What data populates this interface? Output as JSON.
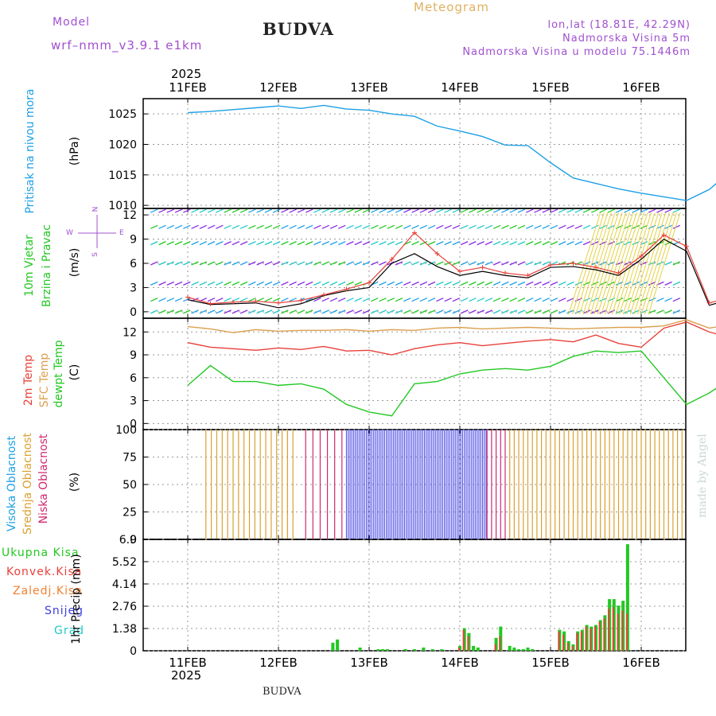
{
  "header": {
    "model_label": "Model",
    "model_name": "wrf–nmm_v3.9.1  e1km",
    "location": "BUDVA",
    "title": "Meteogram",
    "coords": "lon,lat (18.81E, 42.29N)",
    "elevation": "Nadmorska Visina 5m",
    "model_elevation": "Nadmorska Visina u modelu 75.1446m",
    "footer_location": "BUDVA",
    "watermark": "made by Angel"
  },
  "colors": {
    "pressure": "#1ea0e6",
    "wind_speed_gust": "#e8403a",
    "wind_speed": "#000000",
    "temp_2m": "#e8403a",
    "temp_sfc": "#dca050",
    "temp_dewpt": "#22c822",
    "cloud_high": "#5a5ae6",
    "cloud_mid": "#dca030",
    "cloud_low": "#d2286e",
    "precip_total": "#22c822",
    "precip_conv": "#e8403a",
    "precip_snow": "#4040e0",
    "precip_graupel": "#22c8c8",
    "precip_frozen": "#f08030"
  },
  "chart_data": [
    {
      "type": "line",
      "name": "pressure",
      "ylabel_lines": [
        "Pritisak na nivou mora",
        "(hPa)"
      ],
      "x_range": [
        0,
        6.0
      ],
      "ylim": [
        1009.5,
        1027.5
      ],
      "yticks": [
        1010,
        1015,
        1020,
        1025
      ],
      "grid": true,
      "x": [
        0,
        0.25,
        0.5,
        0.75,
        1.0,
        1.25,
        1.5,
        1.75,
        2.0,
        2.25,
        2.5,
        2.75,
        3.0,
        3.25,
        3.5,
        3.75,
        4.0,
        4.25,
        4.5,
        4.75,
        5.0,
        5.25,
        5.5,
        5.75,
        6.0
      ],
      "values": [
        1025.2,
        1025.4,
        1025.7,
        1026.0,
        1026.3,
        1025.9,
        1026.4,
        1025.8,
        1025.6,
        1025.0,
        1024.6,
        1023.0,
        1022.2,
        1021.3,
        1019.9,
        1019.8,
        1017.0,
        1014.5,
        1013.6,
        1012.7,
        1012.0,
        1011.4,
        1010.8,
        1012.6,
        1015.8
      ]
    },
    {
      "type": "line",
      "name": "wind",
      "ylabel_lines": [
        "10m Vjetar",
        "Brzina i Pravac",
        "(m/s)"
      ],
      "compass": [
        "N",
        "W",
        "E",
        "S"
      ],
      "x_range": [
        0,
        6.0
      ],
      "ylim": [
        -0.8,
        12.8
      ],
      "yticks": [
        0,
        3,
        6,
        9,
        12
      ],
      "grid": true,
      "series": [
        {
          "role": "gust",
          "x": [
            0,
            0.25,
            0.5,
            0.75,
            1.0,
            1.25,
            1.5,
            1.75,
            2.0,
            2.25,
            2.5,
            2.75,
            3.0,
            3.25,
            3.5,
            3.75,
            4.0,
            4.25,
            4.5,
            4.75,
            5.0,
            5.25,
            5.5,
            5.75,
            6.0
          ],
          "values": [
            1.8,
            1.0,
            1.2,
            1.3,
            1.1,
            1.4,
            2.1,
            2.8,
            3.6,
            6.5,
            9.8,
            7.2,
            5.0,
            5.5,
            4.8,
            4.5,
            5.8,
            6.0,
            5.5,
            4.8,
            6.9,
            9.5,
            8.1,
            1.1,
            1.8
          ]
        },
        {
          "role": "mean",
          "x": [
            0,
            0.25,
            0.5,
            0.75,
            1.0,
            1.25,
            1.5,
            1.75,
            2.0,
            2.25,
            2.5,
            2.75,
            3.0,
            3.25,
            3.5,
            3.75,
            4.0,
            4.25,
            4.5,
            4.75,
            5.0,
            5.25,
            5.5,
            5.75,
            6.0
          ],
          "values": [
            1.5,
            0.9,
            1.0,
            1.1,
            0.5,
            1.0,
            2.0,
            2.6,
            3.0,
            6.0,
            7.2,
            5.6,
            4.5,
            5.0,
            4.5,
            4.2,
            5.5,
            5.6,
            5.2,
            4.5,
            6.5,
            9.0,
            7.5,
            0.8,
            1.6
          ]
        }
      ],
      "barb_rows": [
        0,
        1.5,
        3.5,
        6,
        8.5,
        10.5,
        12.5
      ]
    },
    {
      "type": "line",
      "name": "temperature",
      "ylabel_lines": [
        "2m Temp",
        "SFC Temp",
        "dewpt Temp",
        "(C)"
      ],
      "x_range": [
        0,
        6.0
      ],
      "ylim": [
        -0.8,
        13.8
      ],
      "yticks": [
        0,
        3,
        6,
        9,
        12
      ],
      "grid": true,
      "series": [
        {
          "role": "sfc",
          "x": [
            0,
            0.25,
            0.5,
            0.75,
            1.0,
            1.25,
            1.5,
            1.75,
            2.0,
            2.25,
            2.5,
            2.75,
            3.0,
            3.25,
            3.5,
            3.75,
            4.0,
            4.25,
            4.5,
            4.75,
            5.0,
            5.25,
            5.5,
            5.75,
            6.0
          ],
          "values": [
            12.7,
            12.4,
            11.9,
            12.3,
            12.1,
            12.2,
            12.2,
            12.3,
            12.1,
            12.3,
            12.2,
            12.5,
            12.6,
            12.4,
            12.5,
            12.6,
            12.5,
            12.4,
            12.5,
            12.6,
            12.6,
            12.8,
            13.6,
            12.5,
            13.0
          ]
        },
        {
          "role": "temp_2m",
          "x": [
            0,
            0.25,
            0.5,
            0.75,
            1.0,
            1.25,
            1.5,
            1.75,
            2.0,
            2.25,
            2.5,
            2.75,
            3.0,
            3.25,
            3.5,
            3.75,
            4.0,
            4.25,
            4.5,
            4.75,
            5.0,
            5.25,
            5.5,
            5.75,
            6.0
          ],
          "values": [
            10.6,
            10.0,
            9.8,
            9.6,
            9.9,
            9.7,
            10.1,
            9.5,
            9.6,
            9.0,
            9.8,
            10.3,
            10.6,
            10.2,
            10.5,
            10.8,
            11.0,
            10.7,
            11.6,
            10.5,
            10.0,
            12.5,
            13.3,
            12.0,
            11.2
          ]
        },
        {
          "role": "dewpt",
          "x": [
            0,
            0.25,
            0.5,
            0.75,
            1.0,
            1.25,
            1.5,
            1.75,
            2.0,
            2.25,
            2.5,
            2.75,
            3.0,
            3.25,
            3.5,
            3.75,
            4.0,
            4.25,
            4.5,
            4.75,
            5.0,
            5.25,
            5.5,
            5.75,
            6.0
          ],
          "values": [
            5.0,
            7.6,
            5.5,
            5.5,
            5.0,
            5.2,
            4.5,
            2.5,
            1.5,
            1.0,
            5.2,
            5.5,
            6.5,
            7.0,
            7.2,
            7.0,
            7.5,
            8.8,
            9.5,
            9.3,
            9.5,
            6.0,
            2.5,
            4.0,
            6.0
          ]
        }
      ]
    },
    {
      "type": "bar",
      "name": "cloud_cover",
      "ylabel_lines": [
        "Visoka Oblacnost",
        "Srednja Oblacnost",
        "Niska Oblacnost",
        "(%)"
      ],
      "x_range": [
        0,
        6.0
      ],
      "ylim": [
        0,
        100
      ],
      "yticks": [
        0,
        25,
        50,
        75,
        100
      ],
      "grid": true,
      "segments": [
        {
          "from": 0.2,
          "to": 1.2,
          "cover": 100,
          "layer": "mid",
          "density": 0.06
        },
        {
          "from": 1.3,
          "to": 1.75,
          "cover": 100,
          "layer": "low",
          "density": 0.08
        },
        {
          "from": 1.75,
          "to": 3.3,
          "cover": 100,
          "layer": "high",
          "density": 0.02
        },
        {
          "from": 3.3,
          "to": 3.5,
          "cover": 100,
          "layer": "low",
          "density": 0.05
        },
        {
          "from": 3.55,
          "to": 6.0,
          "cover": 100,
          "layer": "mid",
          "density": 0.05
        }
      ]
    },
    {
      "type": "bar",
      "name": "precipitation",
      "ylabel_lines": [
        "1hr Precip (mm)"
      ],
      "legend": [
        "Ukupna Kisa",
        "Konvek.Kisa",
        "Zaledj.Kisa",
        "Snijeg",
        "Grad"
      ],
      "x_range": [
        0,
        6.0
      ],
      "ylim": [
        0,
        6.9
      ],
      "yticks": [
        0,
        1.38,
        2.76,
        4.14,
        5.52,
        6.9
      ],
      "ytick_labels": [
        "0",
        "1.38",
        "2.76",
        "4.14",
        "5.52",
        "6.9"
      ],
      "grid": true,
      "x": [
        1.6,
        1.65,
        1.9,
        2.1,
        2.15,
        2.2,
        2.4,
        2.5,
        2.6,
        2.7,
        2.8,
        3.0,
        3.05,
        3.1,
        3.15,
        3.2,
        3.4,
        3.45,
        3.55,
        3.6,
        3.65,
        3.7,
        3.75,
        3.8,
        4.1,
        4.15,
        4.2,
        4.25,
        4.3,
        4.35,
        4.4,
        4.45,
        4.5,
        4.55,
        4.6,
        4.65,
        4.7,
        4.75,
        4.8,
        4.85
      ],
      "values": [
        0.5,
        0.7,
        0.2,
        0.1,
        0.1,
        0.1,
        0.1,
        0.1,
        0.2,
        0.1,
        0.1,
        0.3,
        1.4,
        1.1,
        0.3,
        0.2,
        0.8,
        1.5,
        0.3,
        0.2,
        0.1,
        0.1,
        0.2,
        0.1,
        1.3,
        1.2,
        0.6,
        0.4,
        1.2,
        1.3,
        1.6,
        1.5,
        1.6,
        1.9,
        2.2,
        3.2,
        3.2,
        2.8,
        3.1,
        6.6
      ],
      "convective": [
        0.0,
        0.0,
        0.0,
        0.0,
        0.0,
        0.0,
        0.0,
        0.0,
        0.0,
        0.0,
        0.0,
        0.2,
        1.3,
        0.9,
        0.0,
        0.0,
        0.4,
        0.9,
        0.0,
        0.0,
        0.0,
        0.0,
        0.0,
        0.0,
        1.2,
        1.0,
        0.5,
        0.3,
        1.1,
        1.2,
        1.5,
        1.4,
        1.5,
        1.8,
        2.0,
        2.6,
        2.7,
        2.3,
        2.5,
        2.3
      ]
    }
  ],
  "time_axis": {
    "ticks": [
      0,
      1,
      2,
      3,
      4,
      5
    ],
    "labels": [
      "11FEB",
      "12FEB",
      "13FEB",
      "14FEB",
      "15FEB",
      "16FEB"
    ],
    "year": "2025"
  }
}
